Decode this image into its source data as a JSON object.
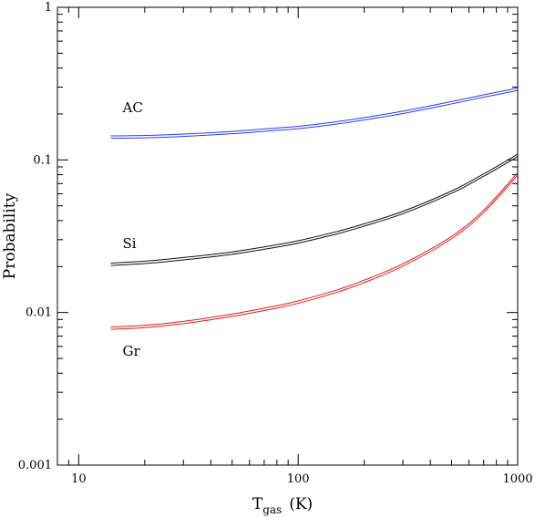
{
  "chart_data": {
    "type": "line",
    "xscale": "log",
    "yscale": "log",
    "xlim": [
      8,
      1000
    ],
    "ylim": [
      0.001,
      1
    ],
    "xlabel": {
      "main": "T",
      "sub": "gas",
      "unit": "(K)"
    },
    "ylabel": "Probability",
    "x_ticks": [
      {
        "value": 10,
        "label": "10"
      },
      {
        "value": 100,
        "label": "100"
      },
      {
        "value": 1000,
        "label": "1000"
      }
    ],
    "y_ticks": [
      {
        "value": 0.001,
        "label": "0.001"
      },
      {
        "value": 0.01,
        "label": "0.01"
      },
      {
        "value": 0.1,
        "label": "0.1"
      },
      {
        "value": 1,
        "label": "1"
      }
    ],
    "grid": false,
    "series": [
      {
        "name": "AC",
        "color": "#2b3cf0",
        "label_at": {
          "x": 16,
          "y": 0.205
        },
        "x": [
          14,
          20,
          30,
          50,
          80,
          100,
          150,
          200,
          300,
          500,
          700,
          1000
        ],
        "y": [
          0.141,
          0.142,
          0.145,
          0.151,
          0.159,
          0.163,
          0.175,
          0.186,
          0.205,
          0.237,
          0.262,
          0.29
        ]
      },
      {
        "name": "Si",
        "color": "#111111",
        "label_at": {
          "x": 16,
          "y": 0.0265
        },
        "x": [
          14,
          20,
          30,
          50,
          80,
          100,
          150,
          200,
          300,
          500,
          700,
          1000
        ],
        "y": [
          0.0207,
          0.0213,
          0.0225,
          0.0245,
          0.0273,
          0.029,
          0.0333,
          0.0375,
          0.0452,
          0.0615,
          0.0795,
          0.107
        ]
      },
      {
        "name": "Gr",
        "color": "#e0201c",
        "label_at": {
          "x": 16,
          "y": 0.0052
        },
        "x": [
          14,
          20,
          30,
          50,
          80,
          100,
          150,
          200,
          300,
          500,
          700,
          1000
        ],
        "y": [
          0.0079,
          0.0081,
          0.0086,
          0.0096,
          0.0109,
          0.0117,
          0.0138,
          0.016,
          0.0205,
          0.031,
          0.046,
          0.081
        ]
      }
    ]
  }
}
